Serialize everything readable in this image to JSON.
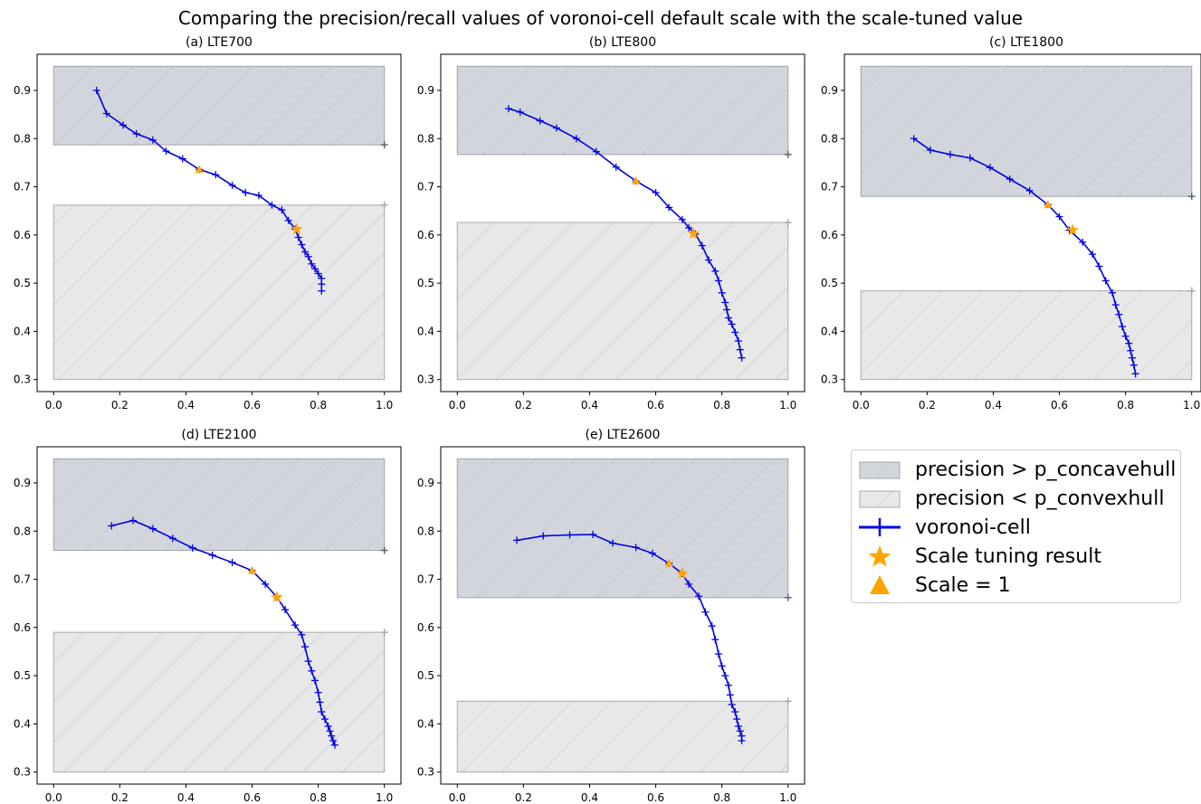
{
  "figure": {
    "title": "Comparing the precision/recall values of voronoi-cell default scale with the scale-tuned value"
  },
  "legend": [
    {
      "label": "precision > p_concavehull",
      "kind": "concave-area",
      "color": "#d2d6dc"
    },
    {
      "label": "precision < p_convexhull",
      "kind": "convex-area",
      "color": "#e8e8e8"
    },
    {
      "label": "voronoi-cell",
      "kind": "line",
      "color": "#0000e6"
    },
    {
      "label": "Scale tuning result",
      "kind": "star",
      "color": "#ffa500"
    },
    {
      "label": "Scale = 1",
      "kind": "triangle",
      "color": "#ffa500"
    }
  ],
  "chart_data": [
    {
      "type": "line",
      "title": "(a) LTE700",
      "xlim": [
        -0.05,
        1.05
      ],
      "ylim": [
        0.275,
        0.975
      ],
      "xticks": [
        "0.0",
        "0.2",
        "0.4",
        "0.6",
        "0.8",
        "1.0"
      ],
      "yticks": [
        "0.3",
        "0.4",
        "0.5",
        "0.6",
        "0.7",
        "0.8",
        "0.9"
      ],
      "concave_region": [
        0.787,
        0.95
      ],
      "convex_region": [
        0.3,
        0.662
      ],
      "series": [
        {
          "name": "voronoi-cell",
          "x": [
            0.13,
            0.16,
            0.21,
            0.25,
            0.3,
            0.34,
            0.39,
            0.44,
            0.49,
            0.54,
            0.58,
            0.62,
            0.66,
            0.69,
            0.71,
            0.73,
            0.74,
            0.75,
            0.76,
            0.77,
            0.78,
            0.79,
            0.8,
            0.81,
            0.81,
            0.81
          ],
          "y": [
            0.9,
            0.852,
            0.828,
            0.81,
            0.797,
            0.774,
            0.758,
            0.736,
            0.725,
            0.703,
            0.688,
            0.682,
            0.662,
            0.652,
            0.63,
            0.612,
            0.595,
            0.58,
            0.565,
            0.555,
            0.54,
            0.53,
            0.52,
            0.51,
            0.498,
            0.484
          ]
        }
      ],
      "scale_tuning_result": [
        0.735,
        0.612
      ],
      "scale_1": [
        0.44,
        0.736
      ]
    },
    {
      "type": "line",
      "title": "(b) LTE800",
      "xlim": [
        -0.05,
        1.05
      ],
      "ylim": [
        0.275,
        0.975
      ],
      "xticks": [
        "0.0",
        "0.2",
        "0.4",
        "0.6",
        "0.8",
        "1.0"
      ],
      "yticks": [
        "0.3",
        "0.4",
        "0.5",
        "0.6",
        "0.7",
        "0.8",
        "0.9"
      ],
      "concave_region": [
        0.767,
        0.95
      ],
      "convex_region": [
        0.3,
        0.626
      ],
      "series": [
        {
          "name": "voronoi-cell",
          "x": [
            0.155,
            0.19,
            0.25,
            0.3,
            0.36,
            0.42,
            0.48,
            0.54,
            0.6,
            0.64,
            0.68,
            0.7,
            0.72,
            0.74,
            0.76,
            0.78,
            0.79,
            0.8,
            0.81,
            0.815,
            0.82,
            0.83,
            0.84,
            0.85,
            0.855,
            0.86
          ],
          "y": [
            0.862,
            0.855,
            0.837,
            0.822,
            0.8,
            0.773,
            0.741,
            0.712,
            0.688,
            0.657,
            0.632,
            0.615,
            0.602,
            0.578,
            0.548,
            0.525,
            0.505,
            0.48,
            0.46,
            0.445,
            0.428,
            0.415,
            0.398,
            0.38,
            0.362,
            0.345
          ]
        }
      ],
      "scale_tuning_result": [
        0.714,
        0.603
      ],
      "scale_1": [
        0.54,
        0.712
      ]
    },
    {
      "type": "line",
      "title": "(c) LTE1800",
      "xlim": [
        -0.05,
        1.05
      ],
      "ylim": [
        0.275,
        0.975
      ],
      "xticks": [
        "0.0",
        "0.2",
        "0.4",
        "0.6",
        "0.8",
        "1.0"
      ],
      "yticks": [
        "0.3",
        "0.4",
        "0.5",
        "0.6",
        "0.7",
        "0.8",
        "0.9"
      ],
      "concave_region": [
        0.68,
        0.95
      ],
      "convex_region": [
        0.3,
        0.484
      ],
      "series": [
        {
          "name": "voronoi-cell",
          "x": [
            0.16,
            0.21,
            0.27,
            0.33,
            0.39,
            0.45,
            0.51,
            0.565,
            0.6,
            0.63,
            0.67,
            0.7,
            0.72,
            0.74,
            0.76,
            0.77,
            0.78,
            0.79,
            0.8,
            0.81,
            0.815,
            0.82,
            0.825,
            0.83
          ],
          "y": [
            0.8,
            0.776,
            0.767,
            0.76,
            0.74,
            0.716,
            0.692,
            0.663,
            0.638,
            0.61,
            0.585,
            0.56,
            0.535,
            0.505,
            0.48,
            0.455,
            0.435,
            0.41,
            0.39,
            0.375,
            0.36,
            0.345,
            0.33,
            0.312
          ]
        }
      ],
      "scale_tuning_result": [
        0.64,
        0.61
      ],
      "scale_1": [
        0.565,
        0.663
      ]
    },
    {
      "type": "line",
      "title": "(d) LTE2100",
      "xlim": [
        -0.05,
        1.05
      ],
      "ylim": [
        0.275,
        0.975
      ],
      "xticks": [
        "0.0",
        "0.2",
        "0.4",
        "0.6",
        "0.8",
        "1.0"
      ],
      "yticks": [
        "0.3",
        "0.4",
        "0.5",
        "0.6",
        "0.7",
        "0.8",
        "0.9"
      ],
      "concave_region": [
        0.76,
        0.95
      ],
      "convex_region": [
        0.3,
        0.59
      ],
      "series": [
        {
          "name": "voronoi-cell",
          "x": [
            0.175,
            0.24,
            0.3,
            0.36,
            0.42,
            0.48,
            0.54,
            0.6,
            0.64,
            0.675,
            0.7,
            0.73,
            0.75,
            0.76,
            0.77,
            0.78,
            0.79,
            0.8,
            0.805,
            0.81,
            0.82,
            0.83,
            0.835,
            0.84,
            0.845,
            0.85
          ],
          "y": [
            0.811,
            0.822,
            0.805,
            0.785,
            0.765,
            0.75,
            0.735,
            0.718,
            0.69,
            0.663,
            0.637,
            0.605,
            0.585,
            0.56,
            0.53,
            0.51,
            0.49,
            0.465,
            0.445,
            0.425,
            0.41,
            0.395,
            0.385,
            0.375,
            0.365,
            0.356
          ]
        }
      ],
      "scale_tuning_result": [
        0.675,
        0.663
      ],
      "scale_1": [
        0.6,
        0.718
      ]
    },
    {
      "type": "line",
      "title": "(e) LTE2600",
      "xlim": [
        -0.05,
        1.05
      ],
      "ylim": [
        0.275,
        0.975
      ],
      "xticks": [
        "0.0",
        "0.2",
        "0.4",
        "0.6",
        "0.8",
        "1.0"
      ],
      "yticks": [
        "0.3",
        "0.4",
        "0.5",
        "0.6",
        "0.7",
        "0.8",
        "0.9"
      ],
      "concave_region": [
        0.662,
        0.95
      ],
      "convex_region": [
        0.3,
        0.447
      ],
      "series": [
        {
          "name": "voronoi-cell",
          "x": [
            0.18,
            0.26,
            0.34,
            0.41,
            0.47,
            0.54,
            0.59,
            0.64,
            0.68,
            0.7,
            0.73,
            0.75,
            0.77,
            0.78,
            0.79,
            0.8,
            0.81,
            0.82,
            0.825,
            0.83,
            0.84,
            0.845,
            0.85,
            0.855,
            0.86,
            0.86
          ],
          "y": [
            0.781,
            0.79,
            0.792,
            0.793,
            0.775,
            0.766,
            0.754,
            0.733,
            0.712,
            0.69,
            0.665,
            0.632,
            0.603,
            0.575,
            0.545,
            0.52,
            0.5,
            0.48,
            0.46,
            0.44,
            0.425,
            0.41,
            0.395,
            0.385,
            0.375,
            0.365
          ]
        }
      ],
      "scale_tuning_result": [
        0.68,
        0.712
      ],
      "scale_1": [
        0.64,
        0.733
      ]
    }
  ]
}
